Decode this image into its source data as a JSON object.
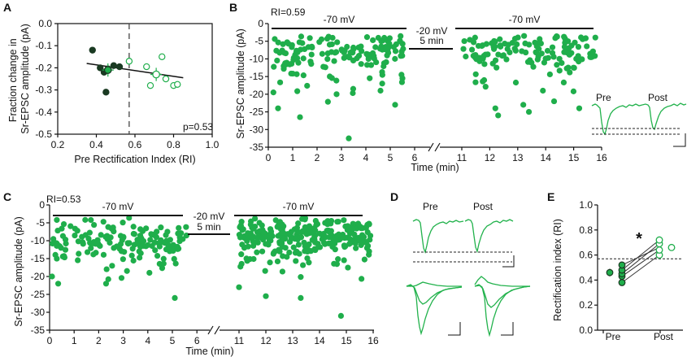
{
  "colors": {
    "green": "#1fae4b",
    "dark": "#1a3a22",
    "line": "#111111"
  },
  "chart_data": [
    {
      "panel": "A",
      "type": "scatter",
      "xlabel": "Pre Rectification Index (RI)",
      "ylabel": "Fraction change in Sr-EPSC amplitude (pA)",
      "xlim": [
        0.2,
        1.0
      ],
      "ylim": [
        -0.5,
        0.0
      ],
      "xticks": [
        "0.2",
        "0.4",
        "0.6",
        "0.8",
        "1.0"
      ],
      "yticks": [
        "0.0",
        "-0.1",
        "-0.2",
        "-0.3",
        "-0.4",
        "-0.5"
      ],
      "cutoff_x": 0.57,
      "annotation": "p=0.53",
      "fit_line": [
        [
          0.35,
          -0.18
        ],
        [
          0.85,
          -0.245
        ]
      ],
      "series": [
        {
          "name": "low RI (filled)",
          "points": [
            [
              0.38,
              -0.12
            ],
            [
              0.42,
              -0.2
            ],
            [
              0.44,
              -0.22
            ],
            [
              0.45,
              -0.31
            ],
            [
              0.46,
              -0.205
            ],
            [
              0.49,
              -0.19
            ],
            [
              0.52,
              -0.195
            ]
          ],
          "mean": [
            0.46,
            -0.21
          ],
          "err_x": 0.03,
          "err_y": 0.03
        },
        {
          "name": "high RI (open)",
          "points": [
            [
              0.57,
              -0.17
            ],
            [
              0.66,
              -0.195
            ],
            [
              0.68,
              -0.28
            ],
            [
              0.74,
              -0.15
            ],
            [
              0.76,
              -0.25
            ],
            [
              0.8,
              -0.28
            ],
            [
              0.82,
              -0.275
            ]
          ],
          "mean": [
            0.71,
            -0.23
          ],
          "err_x": 0.03,
          "err_y": 0.03
        }
      ]
    },
    {
      "panel": "B",
      "type": "scatter",
      "title": "RI=0.59",
      "xlabel": "Time (min)",
      "ylabel": "Sr-EPSC amplitude (pA)",
      "ylim": [
        -35,
        0
      ],
      "yticks": [
        "0",
        "-5",
        "-10",
        "-15",
        "-20",
        "-25",
        "-30",
        "-35"
      ],
      "xticks": [
        "0",
        "1",
        "2",
        "3",
        "4",
        "5",
        "6",
        "11",
        "12",
        "13",
        "14",
        "15",
        "16"
      ],
      "bars": [
        "-70 mV",
        "-20 mV",
        "-70 mV"
      ],
      "break_label": "5 min",
      "segments": [
        {
          "range": [
            0.2,
            5.7
          ],
          "n": 150,
          "seed": 3,
          "mean": -8,
          "spread": 4,
          "extra": [
            [
              0.4,
              -24
            ],
            [
              1.3,
              -26.5
            ],
            [
              3.3,
              -32.5
            ],
            [
              5.2,
              -23
            ],
            [
              2.8,
              -20
            ],
            [
              4.6,
              -19
            ]
          ]
        },
        {
          "range": [
            11.05,
            15.8
          ],
          "n": 130,
          "seed": 7,
          "mean": -7,
          "spread": 3.5,
          "extra": [
            [
              12.2,
              -24
            ],
            [
              12.3,
              -26
            ],
            [
              13.2,
              -23
            ],
            [
              13.4,
              -25
            ],
            [
              14.3,
              -22
            ],
            [
              15.2,
              -24
            ],
            [
              11.8,
              -16
            ],
            [
              13.9,
              -19
            ]
          ]
        }
      ]
    },
    {
      "panel": "C",
      "type": "scatter",
      "title": "RI=0.53",
      "xlabel": "Time (min)",
      "ylabel": "Sr-EPSC amplitude (pA)",
      "ylim": [
        -35,
        0
      ],
      "yticks": [
        "0",
        "-5",
        "-10",
        "-15",
        "-20",
        "-25",
        "-30",
        "-35"
      ],
      "xticks": [
        "0",
        "1",
        "2",
        "3",
        "4",
        "5",
        "6",
        "11",
        "12",
        "13",
        "14",
        "15",
        "16"
      ],
      "bars": [
        "-70 mV",
        "-20 mV",
        "-70 mV"
      ],
      "break_label": "5 min",
      "segments": [
        {
          "range": [
            0.1,
            5.6
          ],
          "n": 160,
          "seed": 11,
          "mean": -10,
          "spread": 4.5,
          "extra": [
            [
              0.1,
              -20
            ],
            [
              0.35,
              -22
            ],
            [
              2.3,
              -22
            ],
            [
              5.1,
              -26
            ]
          ]
        },
        {
          "range": [
            10.9,
            15.9
          ],
          "n": 280,
          "seed": 19,
          "mean": -8,
          "spread": 3.5,
          "extra": [
            [
              11.0,
              -23
            ],
            [
              12.0,
              -25.5
            ],
            [
              13.3,
              -26
            ],
            [
              14.8,
              -31
            ]
          ]
        }
      ]
    },
    {
      "panel": "E",
      "type": "scatter",
      "ylabel": "Rectification index (RI)",
      "ylim": [
        0.0,
        1.0
      ],
      "yticks": [
        "0.0",
        "0.2",
        "0.4",
        "0.6",
        "0.8",
        "1.0"
      ],
      "categories": [
        "Pre",
        "Post"
      ],
      "threshold": 0.57,
      "significance": "*",
      "pre": [
        0.38,
        0.43,
        0.45,
        0.48,
        0.52
      ],
      "post": [
        0.6,
        0.64,
        0.69,
        0.72,
        0.66
      ],
      "pre_mean": 0.46,
      "pre_err": 0.03
    }
  ],
  "panel_d": {
    "label": "D",
    "trace_labels": [
      "Pre",
      "Post"
    ]
  },
  "panel_b_traces": {
    "trace_labels": [
      "Pre",
      "Post"
    ]
  }
}
